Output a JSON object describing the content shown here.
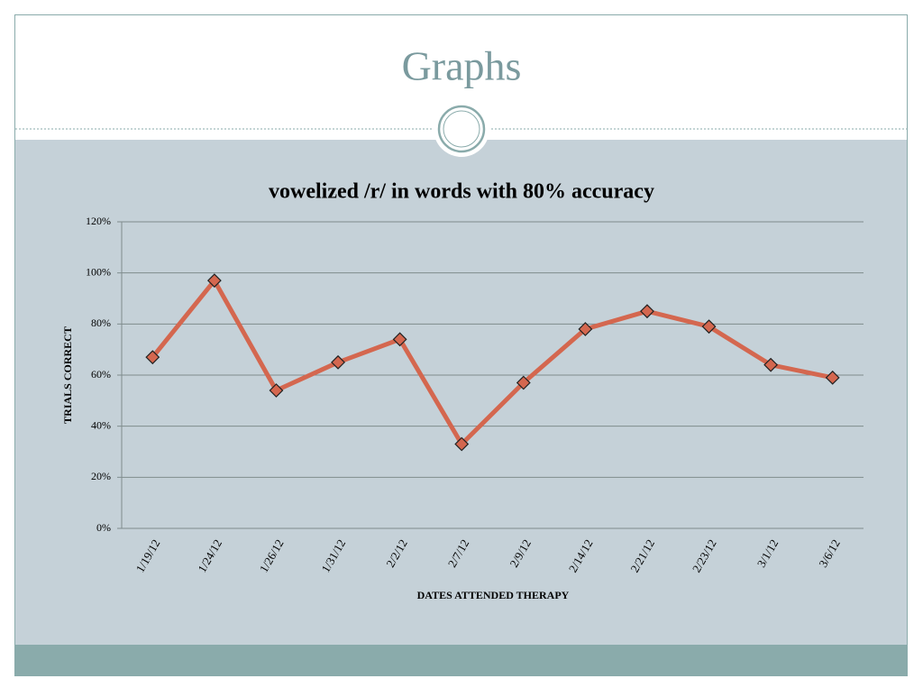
{
  "slide": {
    "title": "Graphs"
  },
  "chart_data": {
    "type": "line",
    "title": "vowelized /r/ in words with 80% accuracy",
    "x_label": "DATES ATTENDED THERAPY",
    "y_label": "TRIALS CORRECT",
    "categories": [
      "1/19/12",
      "1/24/12",
      "1/26/12",
      "1/31/12",
      "2/2/12",
      "2/7/12",
      "2/9/12",
      "2/14/12",
      "2/21/12",
      "2/23/12",
      "3/1/12",
      "3/6/12"
    ],
    "series": [
      {
        "name": "Trials correct",
        "color": "#d4674f",
        "values": [
          67,
          97,
          54,
          65,
          74,
          33,
          57,
          78,
          85,
          79,
          64,
          59
        ]
      }
    ],
    "ylim": [
      0,
      120
    ],
    "yticks": [
      {
        "value": 0,
        "label": "0%"
      },
      {
        "value": 20,
        "label": "20%"
      },
      {
        "value": 40,
        "label": "40%"
      },
      {
        "value": 60,
        "label": "60%"
      },
      {
        "value": 80,
        "label": "80%"
      },
      {
        "value": 100,
        "label": "100%"
      },
      {
        "value": 120,
        "label": "120%"
      }
    ],
    "grid": true,
    "legend": false
  }
}
